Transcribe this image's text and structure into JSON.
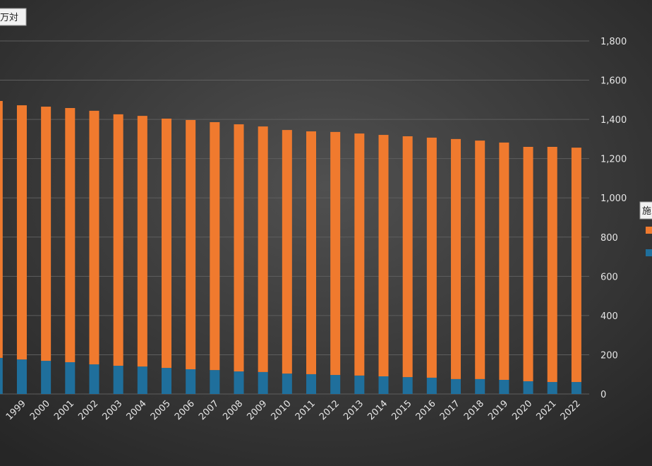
{
  "chart_data": {
    "type": "stacked_bar",
    "title": "万対",
    "legend_title": "施",
    "categories": [
      null,
      "1999",
      "2000",
      "2001",
      "2002",
      "2003",
      "2004",
      "2005",
      "2006",
      "2007",
      "2008",
      "2009",
      "2010",
      "2011",
      "2012",
      "2013",
      "2014",
      "2015",
      "2016",
      "2017",
      "2018",
      "2019",
      "2020",
      "2021",
      "2022"
    ],
    "series": [
      {
        "color": "#1f6f9c",
        "values": [
          184,
          176,
          169,
          162,
          151,
          144,
          140,
          133,
          126,
          122,
          115,
          112,
          104,
          101,
          97,
          94,
          90,
          86,
          83,
          76,
          76,
          72,
          65,
          61,
          61
        ]
      },
      {
        "color": "#f07a2e",
        "values": [
          1310,
          1296,
          1296,
          1296,
          1293,
          1282,
          1278,
          1271,
          1271,
          1264,
          1260,
          1252,
          1242,
          1238,
          1239,
          1234,
          1231,
          1228,
          1224,
          1224,
          1216,
          1210,
          1195,
          1199,
          1195
        ]
      }
    ],
    "ylim": [
      0,
      1800
    ],
    "yticks": [
      0,
      200,
      400,
      600,
      800,
      {
        "value": 1000,
        "label": "1,000"
      },
      {
        "value": 1200,
        "label": "1,200"
      },
      {
        "value": 1400,
        "label": "1,400"
      },
      {
        "value": 1600,
        "label": "1,600"
      },
      {
        "value": 1800,
        "label": "1,800"
      }
    ],
    "y_axis_side": "right",
    "grid": true,
    "legend": "right"
  }
}
